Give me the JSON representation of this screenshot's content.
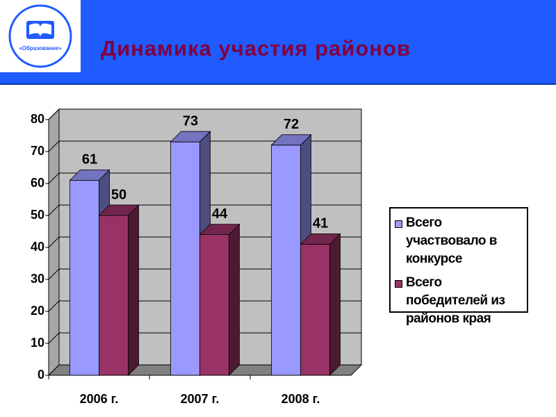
{
  "logo_text": "«Образование»",
  "chart_data": {
    "type": "bar3d",
    "title": "Динамика участия районов",
    "categories": [
      "2006 г.",
      "2007 г.",
      "2008 г."
    ],
    "series": [
      {
        "name": "Всего участвовало в конкурсе",
        "color": "#9999ff",
        "values": [
          61,
          73,
          72
        ]
      },
      {
        "name": "Всего победителей из районов края",
        "color": "#993366",
        "values": [
          50,
          44,
          41
        ]
      }
    ],
    "ylim": [
      0,
      80
    ],
    "yticks": [
      0,
      10,
      20,
      30,
      40,
      50,
      60,
      70,
      80
    ],
    "grid": true,
    "legend": "right"
  }
}
